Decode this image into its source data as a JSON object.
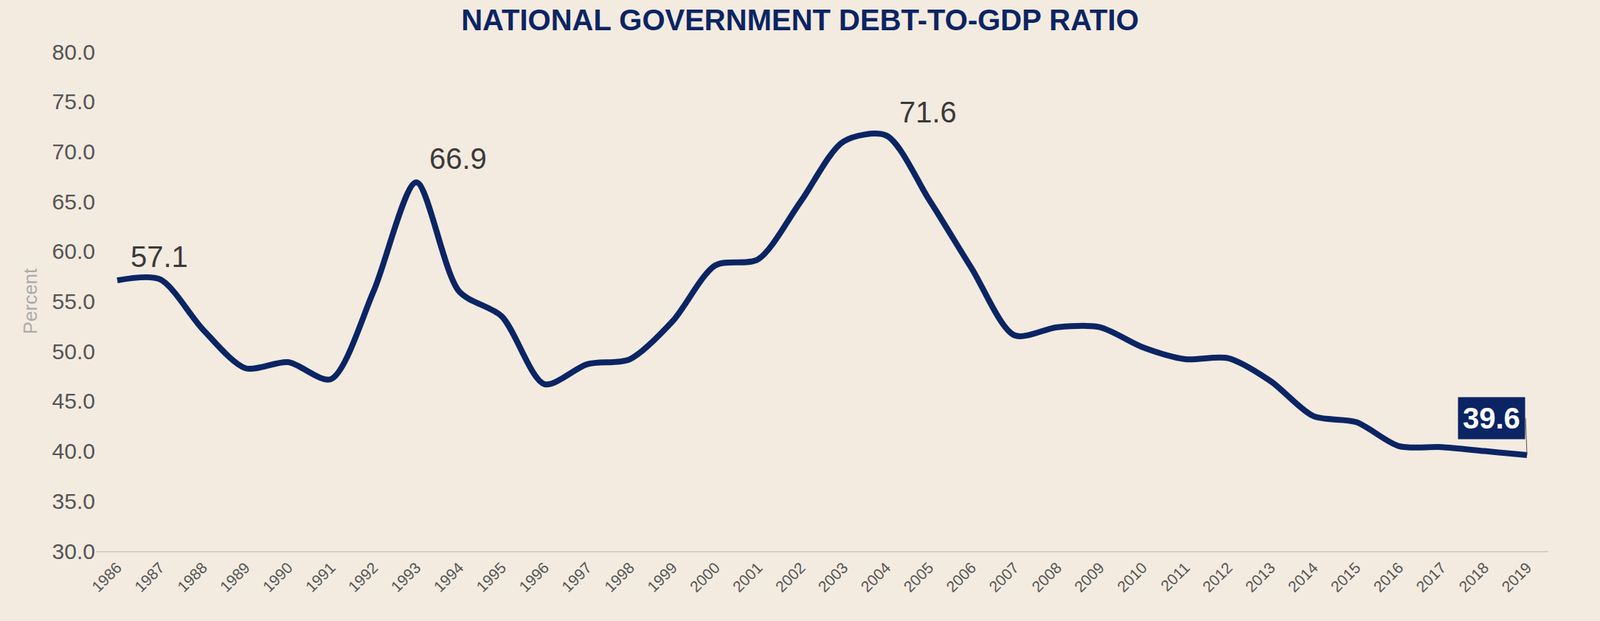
{
  "chart_data": {
    "type": "line",
    "title": "NATIONAL GOVERNMENT DEBT-TO-GDP RATIO",
    "y_label": "Percent",
    "categories": [
      "1986",
      "1987",
      "1988",
      "1989",
      "1990",
      "1991",
      "1992",
      "1993",
      "1994",
      "1995",
      "1996",
      "1997",
      "1998",
      "1999",
      "2000",
      "2001",
      "2002",
      "2003",
      "2004",
      "2005",
      "2006",
      "2007",
      "2008",
      "2009",
      "2010",
      "2011",
      "2012",
      "2013",
      "2014",
      "2015",
      "2016",
      "2017",
      "2018",
      "2019"
    ],
    "values": [
      57.1,
      57.2,
      52.2,
      48.3,
      48.9,
      47.2,
      56.0,
      66.9,
      56.0,
      53.5,
      46.7,
      48.7,
      49.2,
      53.0,
      58.6,
      59.2,
      65.0,
      71.0,
      71.6,
      65.2,
      58.3,
      51.6,
      52.4,
      52.4,
      50.4,
      49.2,
      49.3,
      47.0,
      43.5,
      42.9,
      40.5,
      40.4,
      40.0,
      39.6
    ],
    "color": "#0b2463",
    "line_style": "solid",
    "ylim": [
      30,
      80
    ],
    "yticks": [
      {
        "value": 30,
        "label": "30.0"
      },
      {
        "value": 35,
        "label": "35.0"
      },
      {
        "value": 40,
        "label": "40.0"
      },
      {
        "value": 45,
        "label": "45.0"
      },
      {
        "value": 50,
        "label": "50.0"
      },
      {
        "value": 55,
        "label": "55.0"
      },
      {
        "value": 60,
        "label": "60.0"
      },
      {
        "value": 65,
        "label": "65.0"
      },
      {
        "value": 70,
        "label": "70.0"
      },
      {
        "value": 75,
        "label": "75.0"
      },
      {
        "value": 80,
        "label": "80.0"
      }
    ],
    "grid": false,
    "annotations": [
      {
        "x": "1986",
        "value": 57.1,
        "label": "57.1"
      },
      {
        "x": "1993",
        "value": 66.9,
        "label": "66.9"
      },
      {
        "x": "2004",
        "value": 71.6,
        "label": "71.6"
      },
      {
        "x": "2019",
        "value": 39.6,
        "label": "39.6"
      }
    ]
  }
}
